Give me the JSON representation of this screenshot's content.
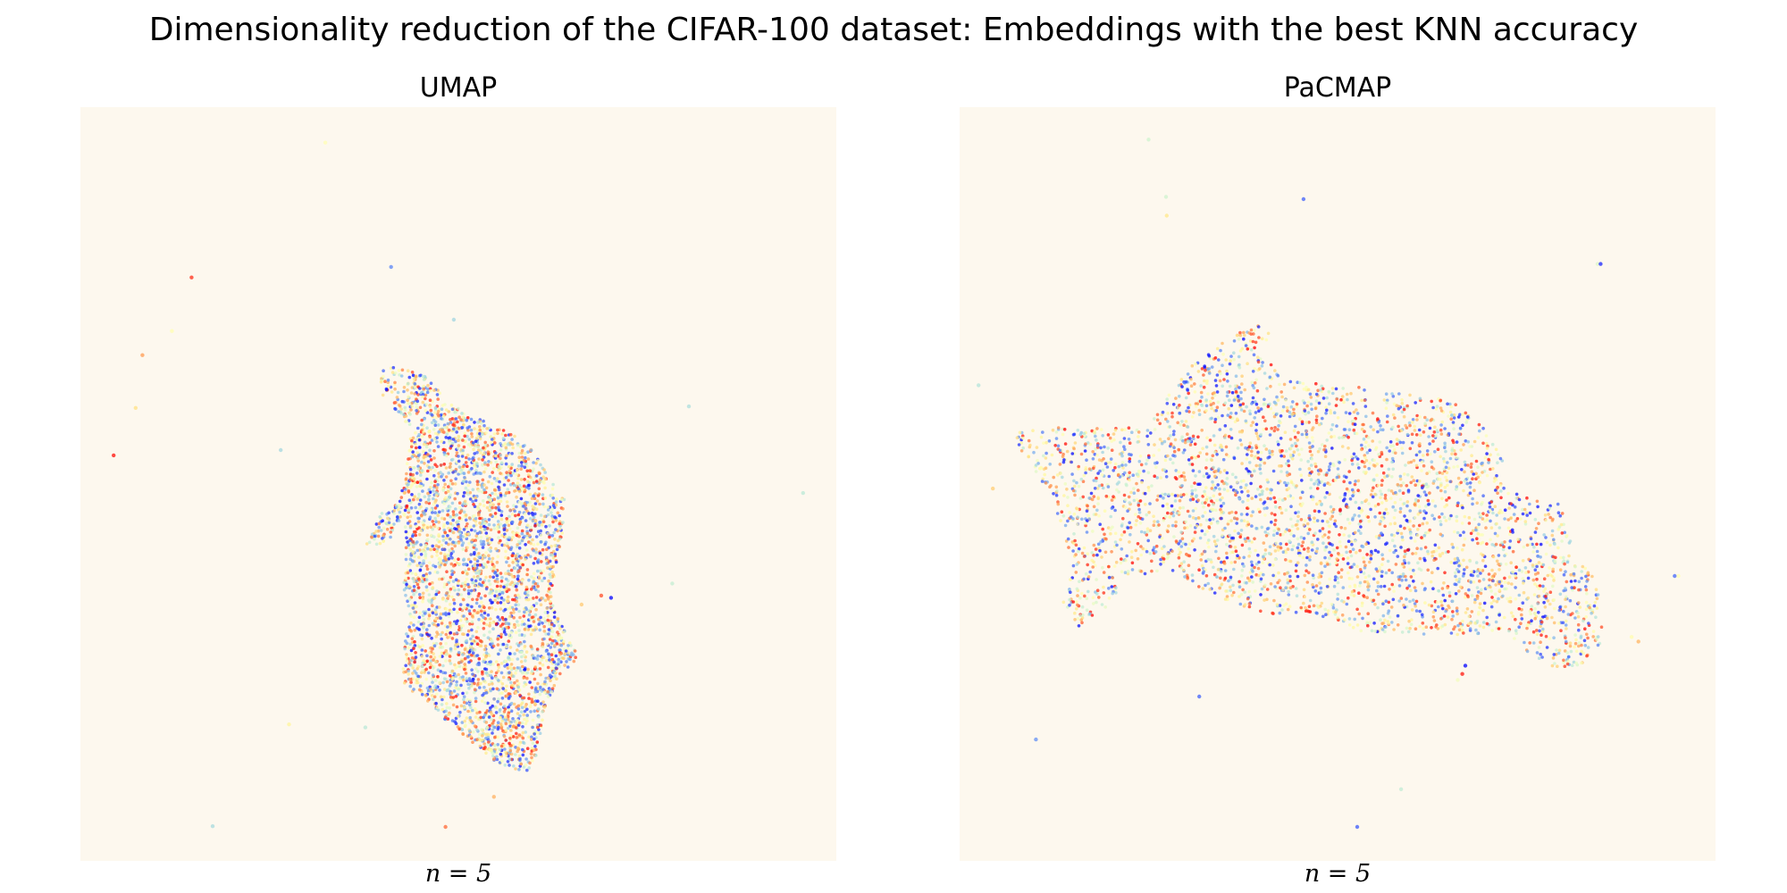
{
  "figure": {
    "title": "Dimensionality reduction of the CIFAR-100 dataset: Embeddings with the best KNN accuracy",
    "background": "#ffffff",
    "plot_background": "#fdf8ee"
  },
  "chart_data": [
    {
      "type": "scatter",
      "title": "UMAP",
      "xlabel": "n = 5",
      "ylabel": "",
      "xlim": [
        0,
        100
      ],
      "ylim": [
        0,
        100
      ],
      "grid": false,
      "axes_visible": false,
      "colormap": "rainbow",
      "marker_alpha": 0.75,
      "series": [
        {
          "cluster": "main",
          "estimated_point_count": 9000,
          "outline": [
            [
              39.5,
              65.1
            ],
            [
              41.0,
              65.7
            ],
            [
              43.5,
              65.3
            ],
            [
              46.4,
              63.9
            ],
            [
              48.3,
              60.9
            ],
            [
              53.5,
              58.3
            ],
            [
              56.9,
              56.8
            ],
            [
              59.6,
              54.6
            ],
            [
              61.5,
              51.8
            ],
            [
              64.1,
              47.9
            ],
            [
              63.9,
              43.8
            ],
            [
              63.0,
              39.7
            ],
            [
              62.2,
              34.5
            ],
            [
              65.9,
              26.9
            ],
            [
              63.6,
              24.8
            ],
            [
              61.8,
              21.3
            ],
            [
              60.9,
              17.0
            ],
            [
              60.3,
              13.4
            ],
            [
              59.0,
              11.9
            ],
            [
              55.7,
              12.6
            ],
            [
              52.2,
              15.4
            ],
            [
              48.7,
              18.2
            ],
            [
              45.9,
              21.2
            ],
            [
              42.9,
              23.2
            ],
            [
              42.5,
              27.2
            ],
            [
              43.6,
              32.3
            ],
            [
              42.6,
              37.2
            ],
            [
              43.1,
              41.2
            ],
            [
              42.7,
              46.2
            ],
            [
              40.7,
              42.2
            ],
            [
              37.9,
              41.7
            ],
            [
              37.3,
              40.8
            ],
            [
              39.8,
              46.2
            ],
            [
              42.2,
              47.6
            ],
            [
              43.1,
              52.3
            ],
            [
              43.7,
              56.7
            ],
            [
              41.1,
              60.8
            ],
            [
              39.7,
              62.0
            ]
          ],
          "x_range": [
            36.9,
            66.2
          ],
          "y_range": [
            11.5,
            66.5
          ]
        },
        {
          "cluster": "outliers",
          "points": [
            [
              32.4,
              95.3
            ],
            [
              14.7,
              77.4
            ],
            [
              41.1,
              78.8
            ],
            [
              49.4,
              71.8
            ],
            [
              12.1,
              70.3
            ],
            [
              8.2,
              67.1
            ],
            [
              7.3,
              60.1
            ],
            [
              4.4,
              53.8
            ],
            [
              26.5,
              54.5
            ],
            [
              80.5,
              60.3
            ],
            [
              95.6,
              48.8
            ],
            [
              78.3,
              36.8
            ],
            [
              70.2,
              34.9
            ],
            [
              66.3,
              34.0
            ],
            [
              27.6,
              18.1
            ],
            [
              37.7,
              17.7
            ],
            [
              17.5,
              4.6
            ],
            [
              48.3,
              4.5
            ],
            [
              54.7,
              8.5
            ],
            [
              68.9,
              35.2
            ]
          ]
        }
      ]
    },
    {
      "type": "scatter",
      "title": "PaCMAP",
      "xlabel": "n = 5",
      "ylabel": "",
      "xlim": [
        0,
        100
      ],
      "ylim": [
        0,
        100
      ],
      "grid": false,
      "axes_visible": false,
      "colormap": "rainbow",
      "marker_alpha": 0.75,
      "series": [
        {
          "cluster": "main",
          "estimated_point_count": 9000,
          "outline": [
            [
              7.1,
              56.7
            ],
            [
              10.5,
              57.4
            ],
            [
              14.2,
              57.5
            ],
            [
              19.4,
              57.4
            ],
            [
              24.5,
              57.6
            ],
            [
              27.7,
              61.8
            ],
            [
              30.9,
              66.1
            ],
            [
              35.0,
              69.2
            ],
            [
              39.5,
              71.1
            ],
            [
              41.1,
              70.0
            ],
            [
              40.1,
              67.3
            ],
            [
              42.2,
              64.7
            ],
            [
              46.0,
              63.5
            ],
            [
              52.3,
              62.9
            ],
            [
              57.2,
              62.3
            ],
            [
              61.6,
              61.9
            ],
            [
              65.7,
              60.5
            ],
            [
              69.1,
              57.7
            ],
            [
              72.2,
              53.4
            ],
            [
              72.4,
              49.2
            ],
            [
              75.9,
              48.4
            ],
            [
              79.3,
              47.4
            ],
            [
              80.5,
              44.5
            ],
            [
              81.6,
              40.8
            ],
            [
              84.8,
              36.3
            ],
            [
              85.1,
              32.5
            ],
            [
              84.6,
              28.0
            ],
            [
              82.3,
              26.0
            ],
            [
              79.2,
              25.6
            ],
            [
              76.7,
              26.4
            ],
            [
              74.3,
              28.4
            ],
            [
              71.8,
              30.8
            ],
            [
              68.0,
              30.0
            ],
            [
              63.5,
              29.7
            ],
            [
              58.3,
              30.0
            ],
            [
              53.7,
              30.2
            ],
            [
              48.8,
              32.3
            ],
            [
              44.7,
              32.8
            ],
            [
              40.0,
              32.6
            ],
            [
              35.9,
              34.3
            ],
            [
              31.2,
              36.6
            ],
            [
              26.6,
              38.5
            ],
            [
              22.4,
              37.6
            ],
            [
              18.9,
              32.9
            ],
            [
              15.3,
              30.5
            ],
            [
              13.6,
              34.2
            ],
            [
              14.9,
              38.2
            ],
            [
              13.7,
              44.0
            ],
            [
              11.2,
              49.9
            ],
            [
              8.7,
              53.7
            ],
            [
              6.9,
              55.7
            ]
          ],
          "x_range": [
            5.3,
            91.1
          ],
          "y_range": [
            24.2,
            71.9
          ]
        },
        {
          "cluster": "outliers",
          "points": [
            [
              25.0,
              95.7
            ],
            [
              27.3,
              88.1
            ],
            [
              27.4,
              85.6
            ],
            [
              45.5,
              87.8
            ],
            [
              84.4,
              79.2
            ],
            [
              84.8,
              79.2
            ],
            [
              2.5,
              63.1
            ],
            [
              4.4,
              49.4
            ],
            [
              94.6,
              37.8
            ],
            [
              95.1,
              37.8
            ],
            [
              88.9,
              29.7
            ],
            [
              89.8,
              29.1
            ],
            [
              66.9,
              25.9
            ],
            [
              66.5,
              24.8
            ],
            [
              65.9,
              24.0
            ],
            [
              31.7,
              21.8
            ],
            [
              10.1,
              16.1
            ],
            [
              58.4,
              9.5
            ],
            [
              52.6,
              4.5
            ]
          ]
        }
      ]
    }
  ]
}
